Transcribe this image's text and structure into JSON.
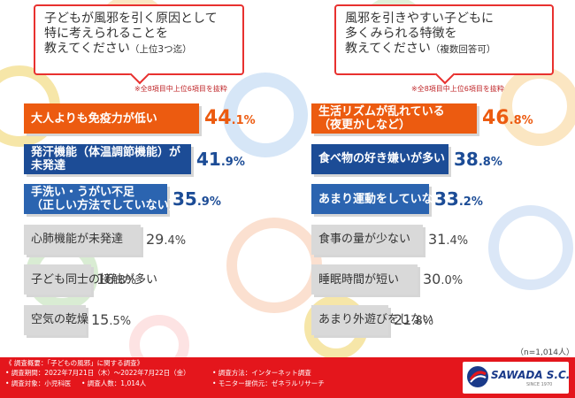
{
  "colors": {
    "accent_red": "#e8312f",
    "orange": "#ec5b10",
    "navy": "#1c4c96",
    "blue": "#2b64b0",
    "gray_bar": "#d9d9d9",
    "footer_red": "#e4161c"
  },
  "questions": {
    "left": {
      "lines": [
        "子どもが風邪を引く原因として",
        "特に考えられることを",
        "教えてください"
      ],
      "suffix": "（上位3つ迄）",
      "note": "※全8項目中上位6項目を抜粋"
    },
    "right": {
      "lines": [
        "風邪を引きやすい子どもに",
        "多くみられる特徴を",
        "教えてください"
      ],
      "suffix": "（複数回答可）",
      "note": "※全8項目中上位6項目を抜粋"
    }
  },
  "chart_data": [
    {
      "type": "bar",
      "orientation": "horizontal",
      "title": "子どもが風邪を引く原因として特に考えられることを教えてください（上位3つ迄）",
      "unit": "%",
      "categories": [
        [
          "大人よりも免疫力が低い"
        ],
        [
          "発汗機能（体温調節機能）が",
          "未発達"
        ],
        [
          "手洗い・うがい不足",
          "（正しい方法でしていない）"
        ],
        [
          "心肺機能が未発達"
        ],
        [
          "子ども同士の接触が多い"
        ],
        [
          "空気の乾燥"
        ]
      ],
      "values": [
        44.1,
        41.9,
        35.9,
        29.4,
        16.8,
        15.5
      ],
      "value_labels": [
        [
          "44",
          ".1%"
        ],
        [
          "41",
          ".9%"
        ],
        [
          "35",
          ".9%"
        ],
        [
          "29",
          ".4%"
        ],
        [
          "16",
          ".8%"
        ],
        [
          "15",
          ".5%"
        ]
      ]
    },
    {
      "type": "bar",
      "orientation": "horizontal",
      "title": "風邪を引きやすい子どもに多くみられる特徴を教えてください（複数回答可）",
      "unit": "%",
      "categories": [
        [
          "生活リズムが乱れている",
          "（夜更かしなど）"
        ],
        [
          "食べ物の好き嫌いが多い"
        ],
        [
          "あまり運動をしていない"
        ],
        [
          "食事の量が少ない"
        ],
        [
          "睡眠時間が短い"
        ],
        [
          "あまり外遊びをしない"
        ]
      ],
      "values": [
        46.8,
        38.8,
        33.2,
        31.4,
        30.0,
        21.8
      ],
      "value_labels": [
        [
          "46",
          ".8%"
        ],
        [
          "38",
          ".8%"
        ],
        [
          "33",
          ".2%"
        ],
        [
          "31",
          ".4%"
        ],
        [
          "30",
          ".0%"
        ],
        [
          "21",
          ".8%"
        ]
      ]
    }
  ],
  "sample_size": "（n=1,014人）",
  "footer": {
    "title": "《 調査概要：「子どもの風邪」に関する調査》",
    "period": "• 調査期間：2022年7月21日（木）～2022年7月22日（金）",
    "target": "• 調査対象：小児科医",
    "count": "• 調査人数：1,014人",
    "method": "• 調査方法：インターネット調査",
    "provider": "• モニター提供元：ゼネラルリサーチ",
    "logo_text": "SAWADA S.C.",
    "logo_sub": "SINCE 1970"
  }
}
